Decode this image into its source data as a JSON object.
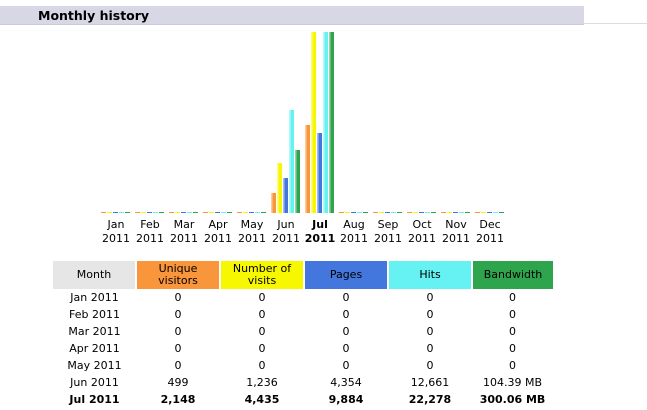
{
  "header": {
    "title": "Monthly history"
  },
  "colors": {
    "unique_visitors": "#f9953a",
    "number_of_visits": "#f7f700",
    "pages": "#4477dd",
    "hits": "#66f2f2",
    "bandwidth": "#2ea44c",
    "month_header": "#e6e6e6"
  },
  "chart_data": {
    "type": "bar",
    "categories": [
      "Jan 2011",
      "Feb 2011",
      "Mar 2011",
      "Apr 2011",
      "May 2011",
      "Jun 2011",
      "Jul 2011",
      "Aug 2011",
      "Sep 2011",
      "Oct 2011",
      "Nov 2011",
      "Dec 2011"
    ],
    "series": [
      {
        "name": "Unique visitors",
        "values": [
          0,
          0,
          0,
          0,
          0,
          499,
          2148,
          0,
          0,
          0,
          0,
          0
        ]
      },
      {
        "name": "Number of visits",
        "values": [
          0,
          0,
          0,
          0,
          0,
          1236,
          4435,
          0,
          0,
          0,
          0,
          0
        ]
      },
      {
        "name": "Pages",
        "values": [
          0,
          0,
          0,
          0,
          0,
          4354,
          9884,
          0,
          0,
          0,
          0,
          0
        ]
      },
      {
        "name": "Hits",
        "values": [
          0,
          0,
          0,
          0,
          0,
          12661,
          22278,
          0,
          0,
          0,
          0,
          0
        ]
      },
      {
        "name": "Bandwidth",
        "values": [
          0,
          0,
          0,
          0,
          0,
          104.39,
          300.06,
          0,
          0,
          0,
          0,
          0
        ]
      }
    ],
    "current_month_index": 6
  },
  "months": [
    {
      "m": "Jan",
      "y": "2011"
    },
    {
      "m": "Feb",
      "y": "2011"
    },
    {
      "m": "Mar",
      "y": "2011"
    },
    {
      "m": "Apr",
      "y": "2011"
    },
    {
      "m": "May",
      "y": "2011"
    },
    {
      "m": "Jun",
      "y": "2011"
    },
    {
      "m": "Jul",
      "y": "2011"
    },
    {
      "m": "Aug",
      "y": "2011"
    },
    {
      "m": "Sep",
      "y": "2011"
    },
    {
      "m": "Oct",
      "y": "2011"
    },
    {
      "m": "Nov",
      "y": "2011"
    },
    {
      "m": "Dec",
      "y": "2011"
    }
  ],
  "table": {
    "headers": {
      "month": "Month",
      "unique_visitors": "Unique visitors",
      "number_of_visits": "Number of visits",
      "pages": "Pages",
      "hits": "Hits",
      "bandwidth": "Bandwidth"
    },
    "rows": [
      {
        "month": "Jan 2011",
        "uv": "0",
        "visits": "0",
        "pages": "0",
        "hits": "0",
        "bw": "0"
      },
      {
        "month": "Feb 2011",
        "uv": "0",
        "visits": "0",
        "pages": "0",
        "hits": "0",
        "bw": "0"
      },
      {
        "month": "Mar 2011",
        "uv": "0",
        "visits": "0",
        "pages": "0",
        "hits": "0",
        "bw": "0"
      },
      {
        "month": "Apr 2011",
        "uv": "0",
        "visits": "0",
        "pages": "0",
        "hits": "0",
        "bw": "0"
      },
      {
        "month": "May 2011",
        "uv": "0",
        "visits": "0",
        "pages": "0",
        "hits": "0",
        "bw": "0"
      },
      {
        "month": "Jun 2011",
        "uv": "499",
        "visits": "1,236",
        "pages": "4,354",
        "hits": "12,661",
        "bw": "104.39 MB"
      },
      {
        "month": "Jul 2011",
        "uv": "2,148",
        "visits": "4,435",
        "pages": "9,884",
        "hits": "22,278",
        "bw": "300.06 MB"
      }
    ]
  }
}
